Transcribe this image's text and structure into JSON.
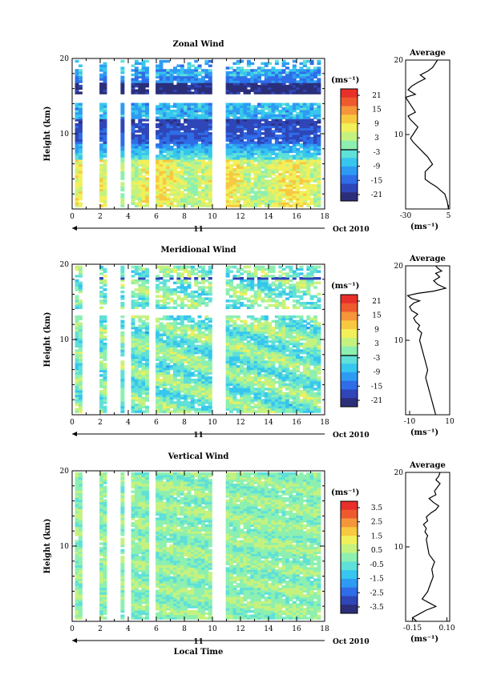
{
  "chart_data": [
    {
      "type": "heatmap",
      "title": "Zonal Wind",
      "ylabel": "Height (km)",
      "xlim": [
        0,
        18
      ],
      "ylim": [
        0,
        20
      ],
      "xticks": [
        "0",
        "2",
        "4",
        "6",
        "8",
        "10",
        "12",
        "14",
        "16",
        "18"
      ],
      "yticks": [
        "10",
        "20"
      ],
      "day_label": "11",
      "date_label": "Oct 2010",
      "colorbar": {
        "unit": "(ms⁻¹)",
        "labels": [
          "21",
          "15",
          "9",
          "3",
          "-3",
          "-9",
          "-15",
          "-21"
        ],
        "zero_line_value": 0
      },
      "profile": {
        "title": "Average",
        "xlabel": "(ms⁻¹)",
        "xlim": [
          -30,
          6
        ],
        "xticks": [
          "-30",
          "5"
        ],
        "yticks": [
          "10",
          "20"
        ],
        "x": [
          5,
          4,
          2,
          -5,
          -10,
          -14,
          -14,
          -11,
          -8,
          -12,
          -18,
          -24,
          -26,
          -24,
          -20,
          -26,
          -28,
          -22,
          -24,
          -26,
          -28,
          -30,
          -22,
          -26,
          -28,
          -25,
          -20,
          -14,
          -18,
          -12,
          -8,
          -6,
          -4
        ],
        "y": [
          0,
          1,
          2,
          3,
          3.5,
          4,
          5,
          5.5,
          6,
          7,
          8,
          9,
          9.5,
          10,
          11,
          12,
          12.5,
          13,
          13.5,
          14,
          14.5,
          15,
          15.4,
          15.8,
          16,
          16.5,
          17,
          17.5,
          18,
          18.5,
          19,
          19.5,
          20
        ]
      }
    },
    {
      "type": "heatmap",
      "title": "Meridional Wind",
      "ylabel": "Height (km)",
      "xlim": [
        0,
        18
      ],
      "ylim": [
        0,
        20
      ],
      "xticks": [
        "0",
        "2",
        "4",
        "6",
        "8",
        "10",
        "12",
        "14",
        "16",
        "18"
      ],
      "yticks": [
        "10",
        "20"
      ],
      "day_label": "11",
      "date_label": "Oct 2010",
      "colorbar": {
        "unit": "(ms⁻¹)",
        "labels": [
          "21",
          "15",
          "9",
          "3",
          "-3",
          "-9",
          "-15",
          "-21"
        ],
        "zero_line_value": 0
      },
      "profile": {
        "title": "Average",
        "xlabel": "(ms⁻¹)",
        "xlim": [
          -12,
          10
        ],
        "xticks": [
          "-10",
          "10"
        ],
        "yticks": [
          "10",
          "20"
        ],
        "x": [
          3,
          2,
          1,
          0,
          -1,
          -2,
          -1,
          -2,
          -3,
          -4,
          -5,
          -4,
          -6,
          -5,
          -7,
          -8,
          -6,
          -9,
          -10,
          -8,
          -5,
          -9,
          -11,
          -6,
          2,
          8,
          4,
          2,
          5,
          3,
          6,
          4,
          3
        ],
        "y": [
          0,
          1,
          2,
          3,
          4,
          5,
          6,
          7,
          8,
          9,
          10,
          11,
          11.5,
          12,
          12.5,
          13,
          13.5,
          14,
          14.5,
          15,
          15.3,
          15.6,
          16,
          16.3,
          16.6,
          17,
          17.5,
          18,
          18.5,
          19,
          19.3,
          19.7,
          20
        ]
      }
    },
    {
      "type": "heatmap",
      "title": "Vertical Wind",
      "ylabel": "Height (km)",
      "xlabel": "Local Time",
      "xlim": [
        0,
        18
      ],
      "ylim": [
        0,
        20
      ],
      "xticks": [
        "0",
        "2",
        "4",
        "6",
        "8",
        "10",
        "12",
        "14",
        "16",
        "18"
      ],
      "yticks": [
        "10",
        "20"
      ],
      "day_label": "11",
      "date_label": "Oct 2010",
      "colorbar": {
        "unit": "(ms⁻¹)",
        "labels": [
          "3.5",
          "2.5",
          "1.5",
          "0.5",
          "-0.5",
          "-1.5",
          "-2.5",
          "-3.5"
        ]
      },
      "profile": {
        "title": "Average",
        "xlabel": "(ms⁻¹)",
        "xlim": [
          -0.2,
          0.12
        ],
        "xticks": [
          "-0.15",
          "0.10"
        ],
        "yticks": [
          "10",
          "20"
        ],
        "x": [
          -0.12,
          -0.15,
          -0.1,
          -0.05,
          0.02,
          -0.03,
          -0.08,
          -0.04,
          -0.02,
          0.0,
          -0.01,
          0.01,
          -0.03,
          -0.04,
          -0.05,
          -0.04,
          -0.06,
          -0.05,
          -0.07,
          -0.04,
          -0.05,
          -0.02,
          0.02,
          0.04,
          0.0,
          -0.03,
          0.02,
          0.01,
          0.03,
          0.05,
          0.02,
          0.04,
          0.05
        ],
        "y": [
          0,
          0.5,
          1,
          1.5,
          2,
          2.5,
          3,
          4,
          5,
          6,
          7,
          8,
          9,
          10,
          11,
          11.5,
          12,
          12.5,
          13,
          13.5,
          14,
          14.5,
          15,
          15.5,
          16,
          16.5,
          17,
          17.5,
          18,
          18.5,
          19,
          19.5,
          20
        ]
      }
    }
  ]
}
